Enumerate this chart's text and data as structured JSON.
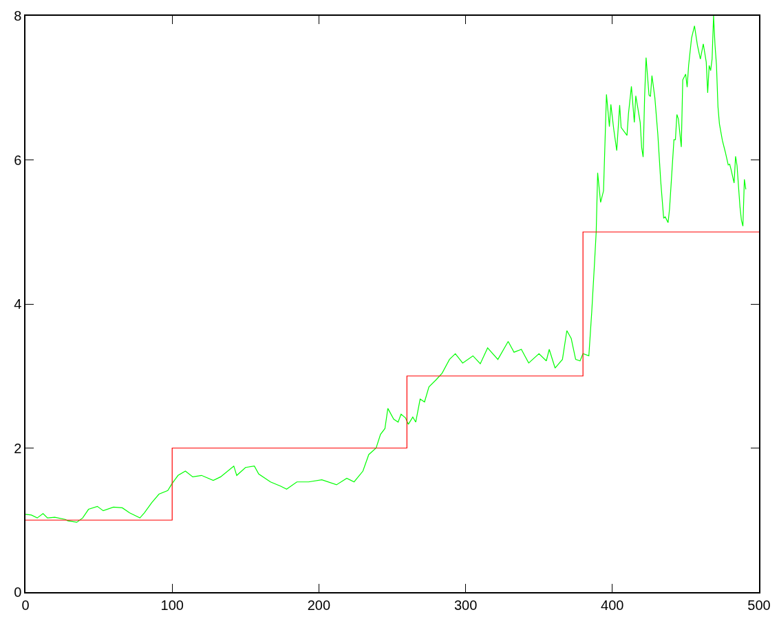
{
  "chart_data": {
    "type": "line",
    "xlim": [
      0,
      500
    ],
    "ylim": [
      0,
      8
    ],
    "xticks": [
      0,
      100,
      200,
      300,
      400,
      500
    ],
    "yticks": [
      0,
      2,
      4,
      6,
      8
    ],
    "grid": false,
    "legend": false,
    "marker": "none",
    "line_style": "solid",
    "series": [
      {
        "color": "#00ff00",
        "x": [
          0,
          4,
          8,
          12,
          15,
          20,
          27,
          29,
          35,
          39,
          43,
          49,
          53,
          60,
          66,
          71,
          78,
          81,
          86,
          91,
          97,
          100,
          104,
          109,
          114,
          120,
          128,
          133,
          142,
          144,
          150,
          156,
          159,
          167,
          174,
          178,
          185,
          193,
          202,
          212,
          219,
          224,
          230,
          234,
          239,
          242,
          245,
          247,
          251,
          254,
          256,
          259,
          261,
          264,
          266,
          269,
          272,
          275,
          280,
          284,
          289,
          293,
          298,
          305,
          310,
          315,
          322,
          329,
          333,
          338,
          343,
          350,
          355,
          357,
          361,
          366,
          369,
          372,
          375,
          378,
          380,
          384,
          386,
          388,
          389,
          390,
          392,
          394,
          396,
          398,
          399,
          401,
          403,
          405,
          406,
          410,
          411,
          413,
          415,
          416,
          419,
          420,
          421,
          422,
          423,
          425,
          426,
          427,
          429,
          431,
          433,
          435,
          436,
          438,
          439,
          442,
          443,
          444,
          445,
          447,
          448,
          450,
          451,
          452,
          454,
          456,
          458,
          460,
          462,
          464,
          465,
          466,
          467,
          468,
          469,
          470,
          471,
          472,
          473,
          475,
          477,
          479,
          480,
          481,
          483,
          484,
          485,
          487,
          488,
          489,
          490,
          491
        ],
        "values": [
          1.08,
          1.07,
          1.03,
          1.09,
          1.03,
          1.04,
          1.01,
          0.99,
          0.97,
          1.03,
          1.15,
          1.19,
          1.13,
          1.18,
          1.17,
          1.1,
          1.03,
          1.1,
          1.24,
          1.36,
          1.41,
          1.51,
          1.62,
          1.68,
          1.6,
          1.62,
          1.55,
          1.6,
          1.75,
          1.62,
          1.73,
          1.75,
          1.64,
          1.53,
          1.47,
          1.43,
          1.53,
          1.53,
          1.56,
          1.49,
          1.58,
          1.53,
          1.68,
          1.91,
          2.0,
          2.19,
          2.27,
          2.55,
          2.4,
          2.36,
          2.47,
          2.42,
          2.33,
          2.43,
          2.36,
          2.68,
          2.64,
          2.85,
          2.95,
          3.04,
          3.23,
          3.31,
          3.18,
          3.28,
          3.17,
          3.39,
          3.23,
          3.48,
          3.33,
          3.37,
          3.18,
          3.31,
          3.21,
          3.37,
          3.11,
          3.23,
          3.63,
          3.52,
          3.23,
          3.21,
          3.31,
          3.28,
          3.9,
          4.62,
          5.0,
          5.82,
          5.41,
          5.57,
          6.91,
          6.46,
          6.77,
          6.42,
          6.13,
          6.76,
          6.45,
          6.34,
          6.64,
          7.02,
          6.52,
          6.89,
          6.52,
          6.17,
          6.04,
          6.87,
          7.42,
          6.9,
          6.88,
          7.17,
          6.86,
          6.36,
          5.7,
          5.19,
          5.21,
          5.13,
          5.32,
          6.28,
          6.28,
          6.63,
          6.57,
          6.18,
          7.11,
          7.19,
          7.01,
          7.31,
          7.69,
          7.86,
          7.59,
          7.4,
          7.61,
          7.36,
          6.93,
          7.31,
          7.24,
          7.4,
          8.0,
          7.59,
          7.31,
          6.74,
          6.5,
          6.27,
          6.11,
          5.93,
          5.94,
          5.86,
          5.68,
          6.05,
          5.92,
          5.35,
          5.16,
          5.08,
          5.73,
          5.59
        ]
      },
      {
        "type": "step",
        "color": "#ff0000",
        "x": [
          0,
          100,
          260,
          380,
          500
        ],
        "values": [
          1,
          2,
          3,
          5,
          5
        ]
      }
    ]
  }
}
